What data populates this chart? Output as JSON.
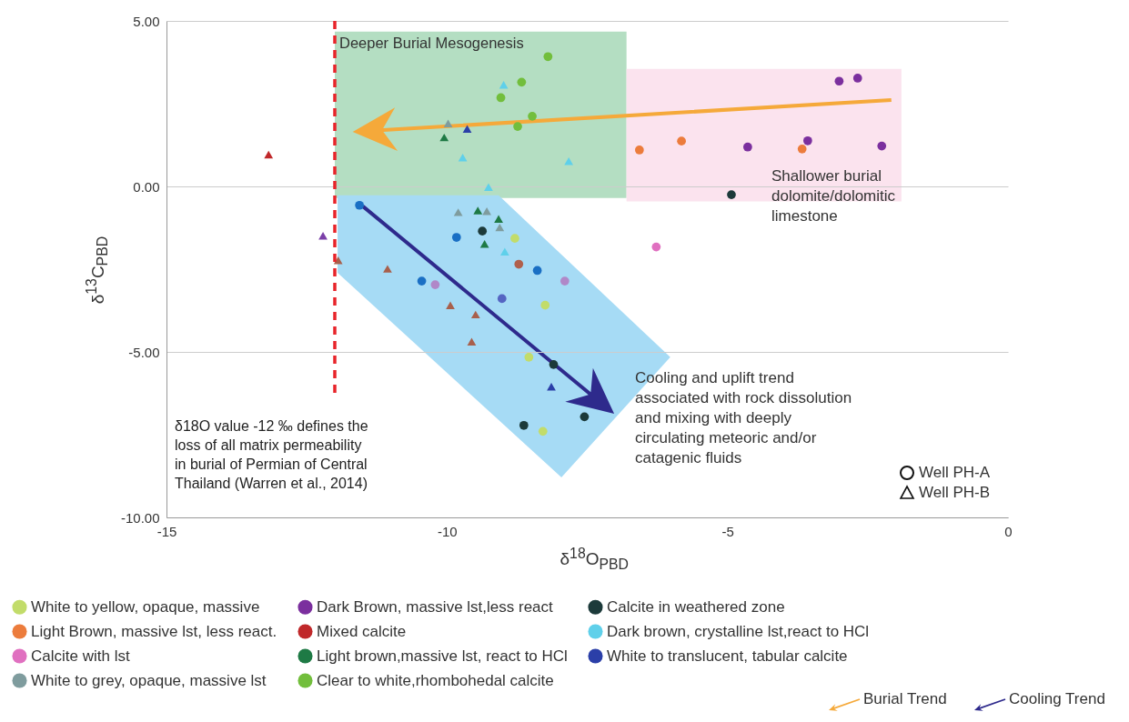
{
  "chart_data": {
    "type": "scatter",
    "xlabel": "δ$^{18}$O$_{PBD}$",
    "ylabel": "δ$^{13}$C$_{PBD}$",
    "xlim": [
      -15,
      0
    ],
    "xticks": [
      -15,
      -10,
      -5,
      0
    ],
    "ylim": [
      -10,
      5
    ],
    "yticks": [
      {
        "value": 5,
        "label": "5.00"
      },
      {
        "value": 0,
        "label": "0.00"
      },
      {
        "value": -5,
        "label": "-5.00"
      },
      {
        "value": -10,
        "label": "-10.00"
      }
    ],
    "grid": "y",
    "legend": "bottom",
    "series": [
      {
        "name": "White to yellow, opaque, massive",
        "color": "#c2dc6a",
        "marker": "circle",
        "x": [
          -8.79,
          -8.25,
          -8.54,
          -8.29
        ],
        "values": [
          -1.57,
          -3.59,
          -5.16,
          -7.4
        ]
      },
      {
        "name": "White to grey, opaque, massive lst",
        "color": "#7f9c9e",
        "marker": "triangle",
        "x": [
          -9.98,
          -9.8,
          -9.29,
          -9.06
        ],
        "values": [
          1.9,
          -0.78,
          -0.75,
          -1.24
        ]
      },
      {
        "name": "Light brown,massive lst, react to HCl",
        "color": "#1e7a45",
        "marker": "triangle",
        "x": [
          -10.05,
          -9.45,
          -9.08,
          -9.33
        ],
        "values": [
          1.48,
          -0.73,
          -0.98,
          -1.74
        ]
      },
      {
        "name": "Dark brown, crystalline lst,react to HCl",
        "color": "#5fd0ea",
        "marker": "triangle",
        "x": [
          -8.99,
          -9.72,
          -7.83,
          -9.26,
          -8.97
        ],
        "values": [
          3.07,
          0.87,
          0.76,
          -0.02,
          -1.97
        ]
      },
      {
        "name": "Light Brown, massive lst, less react.",
        "color": "#ec7c3c",
        "marker": "circle",
        "x": [
          -6.57,
          -5.82,
          -3.67
        ],
        "values": [
          1.1,
          1.37,
          1.13
        ]
      },
      {
        "name": "Dark Brown, massive lst,less react",
        "color": "#7b2f9e",
        "marker": "circle",
        "x": [
          -3.01,
          -2.68,
          -4.64,
          -3.57,
          -2.25
        ],
        "values": [
          3.18,
          3.27,
          1.19,
          1.38,
          1.22
        ]
      },
      {
        "name": "Clear to white,rhombohedal calcite",
        "color": "#72be3c",
        "marker": "circle",
        "x": [
          -8.2,
          -8.67,
          -9.04,
          -8.48,
          -8.74
        ],
        "values": [
          3.92,
          3.15,
          2.68,
          2.12,
          1.81
        ]
      },
      {
        "name": "White to translucent, tabular calcite",
        "color": "#2b3fa8",
        "marker": "triangle",
        "x": [
          -9.64,
          -8.14
        ],
        "values": [
          1.74,
          -6.05
        ]
      },
      {
        "name": "Calcite with lst",
        "color": "#e070c0",
        "marker": "circle",
        "x": [
          -6.27
        ],
        "values": [
          -1.83
        ]
      },
      {
        "name": "Mixed calcite",
        "color": "#c0282a",
        "marker": "triangle",
        "x": [
          -13.18
        ],
        "values": [
          0.96
        ]
      },
      {
        "name": "Calcite in weathered zone",
        "color": "#1c3a3a",
        "marker": "circle",
        "x": [
          -9.37,
          -8.1,
          -7.55,
          -8.63,
          -4.93
        ],
        "values": [
          -1.35,
          -5.38,
          -6.96,
          -7.22,
          -0.25
        ]
      },
      {
        "color": "#1a6fc4",
        "marker": "circle",
        "x": [
          -11.56,
          -9.83,
          -8.39,
          -10.45
        ],
        "values": [
          -0.57,
          -1.54,
          -2.54,
          -2.86
        ]
      },
      {
        "color": "#7b3fa8",
        "marker": "triangle",
        "x": [
          -12.21
        ],
        "values": [
          -1.49
        ]
      },
      {
        "color": "#b088c8",
        "marker": "circle",
        "x": [
          -7.9,
          -10.21
        ],
        "values": [
          -2.86,
          -2.97
        ]
      },
      {
        "color": "#5565c2",
        "marker": "circle",
        "x": [
          -9.02
        ],
        "values": [
          -3.39
        ]
      },
      {
        "color": "#a8604c",
        "marker": "triangle",
        "x": [
          -11.94,
          -11.06,
          -9.94,
          -9.49,
          -9.56
        ],
        "values": [
          -2.23,
          -2.49,
          -3.59,
          -3.87,
          -4.69
        ]
      },
      {
        "color": "#b0604c",
        "marker": "circle",
        "x": [
          -8.72
        ],
        "values": [
          -2.35
        ]
      }
    ],
    "ref_lines": [
      {
        "axis": "x",
        "value": -12,
        "label": "δ18O value -12 ‰ defines the loss of all matrix permeability in burial of Permian of Central Thailand (Warren et al., 2014)",
        "color": "#e8242a",
        "line_style": "dashed"
      }
    ],
    "annotations": [
      "Deeper Burial Mesogenesis",
      "Shallower burial dolomite/dolomitic limestone",
      "Cooling and uplift trend associated with rock dissolution and mixing with deeply circulating meteoric and/or catagenic fluids",
      "Well PH-A",
      "Well PH-B",
      "Burial Trend",
      "Cooling Trend"
    ]
  }
}
